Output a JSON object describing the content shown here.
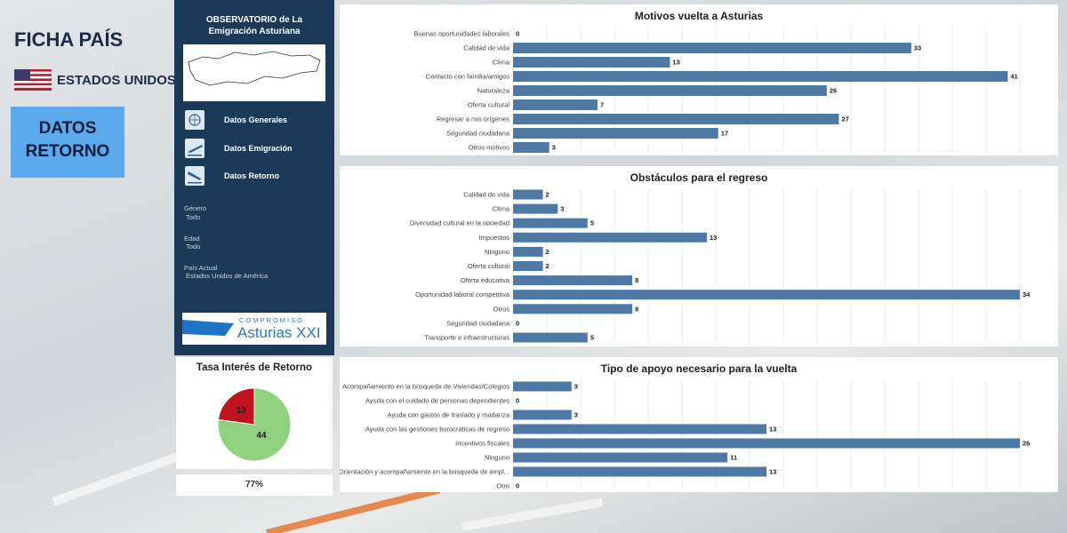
{
  "header": {
    "title": "FICHA PAÍS",
    "country": "ESTADOS UNIDOS",
    "section_badge": "DATOS\nRETORNO"
  },
  "sidebar": {
    "title": "OBSERVATORIO de La\nEmigración Asturiana",
    "nav": [
      {
        "label": "Datos Generales",
        "icon": "globe-icon"
      },
      {
        "label": "Datos Emigración",
        "icon": "plane-takeoff-icon"
      },
      {
        "label": "Datos Retorno",
        "icon": "plane-landing-icon"
      }
    ],
    "filters": [
      {
        "label": "Género",
        "value": "Todo"
      },
      {
        "label": "Edad",
        "value": "Todo"
      },
      {
        "label": "País Actual",
        "value": "Estados Unidos de América"
      }
    ],
    "logo": {
      "top": "COMPROMISO",
      "main": "Asturias XXI"
    }
  },
  "colors": {
    "navy": "#1b3a5a",
    "badge": "#5aa9ec",
    "bar": "#4e79a7",
    "pie_green": "#8fd17e",
    "pie_red": "#c1121f"
  },
  "pie_title": "Tasa Interés de Retorno",
  "rate": "77%",
  "chart_data": [
    {
      "type": "bar",
      "orientation": "horizontal",
      "title": "Motivos vuelta a Asturias",
      "categories": [
        "Buenas oportunidades laborales",
        "Calidad de vida",
        "Clima",
        "Contacto con familia/amigos",
        "Naturaleza",
        "Oferta cultural",
        "Regresar a mis orígenes",
        "Seguridad ciudadana",
        "Otros motivos"
      ],
      "values": [
        0,
        33,
        13,
        41,
        26,
        7,
        27,
        17,
        3
      ],
      "xlim": [
        0,
        42
      ],
      "grid": true
    },
    {
      "type": "bar",
      "orientation": "horizontal",
      "title": "Obstáculos para el regreso",
      "categories": [
        "Calidad de vida",
        "Clima",
        "Diversidad cultural en la sociedad",
        "Impuestos",
        "Ninguno",
        "Oferta cultural",
        "Oferta educativa",
        "Oportunidad laboral competitiva",
        "Otros",
        "Seguridad ciudadana",
        "Transporte e infraestructuras"
      ],
      "values": [
        2,
        3,
        5,
        13,
        2,
        2,
        8,
        34,
        8,
        0,
        5
      ],
      "xlim": [
        0,
        34
      ],
      "grid": true
    },
    {
      "type": "bar",
      "orientation": "horizontal",
      "title": "Tipo de apoyo necesario para la vuelta",
      "categories": [
        "Acompañamiento en la búsqueda de Viviendas/Colegios",
        "Ayuda con el cuidado de personas dependientes",
        "Ayuda con gastos de traslado y mudanza",
        "Ayuda con las gestiones burocráticas de regreso",
        "Incentivos fiscales",
        "Ninguno",
        "Orientación y acompañamiento en la búsqueda de empl...",
        "Otro"
      ],
      "values": [
        3,
        0,
        3,
        13,
        26,
        11,
        13,
        0
      ],
      "xlim": [
        0,
        26
      ],
      "grid": true
    },
    {
      "type": "pie",
      "title": "Tasa Interés de Retorno",
      "values": [
        44,
        13
      ],
      "colors": [
        "#8fd17e",
        "#c1121f"
      ]
    }
  ]
}
